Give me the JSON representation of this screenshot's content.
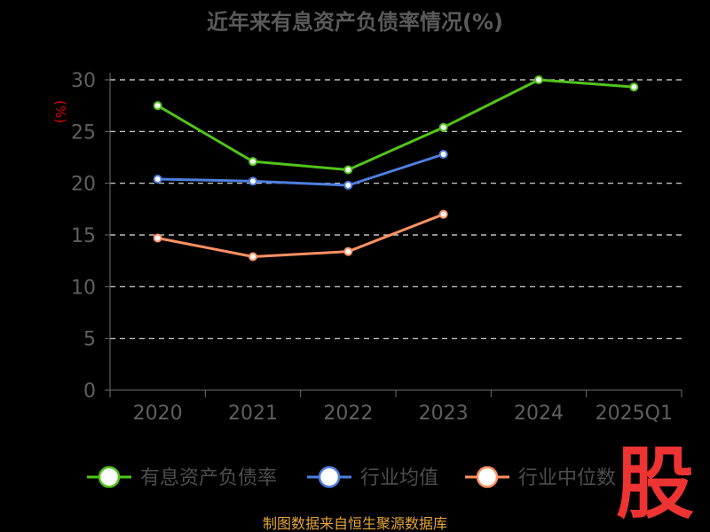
{
  "chart_data": {
    "type": "line",
    "title": "近年来有息资产负债率情况(%)",
    "ylabel": "(%)",
    "categories": [
      "2020",
      "2021",
      "2022",
      "2023",
      "2024",
      "2025Q1"
    ],
    "y_ticks": [
      "0",
      "5",
      "10",
      "15",
      "20",
      "25",
      "30"
    ],
    "ylim": [
      0,
      30
    ],
    "grid": true,
    "legend_position": "bottom",
    "series": [
      {
        "name": "有息资产负债率",
        "color": "#52c41a",
        "values": [
          27.5,
          22.1,
          21.3,
          25.4,
          30.0,
          29.3
        ]
      },
      {
        "name": "行业均值",
        "color": "#4f7fe0",
        "values": [
          20.4,
          20.2,
          19.8,
          22.8,
          null,
          null
        ]
      },
      {
        "name": "行业中位数",
        "color": "#ff9164",
        "values": [
          14.7,
          12.9,
          13.4,
          17.0,
          null,
          null
        ]
      }
    ]
  },
  "footer": "制图数据来自恒生聚源数据库",
  "watermark": "股"
}
